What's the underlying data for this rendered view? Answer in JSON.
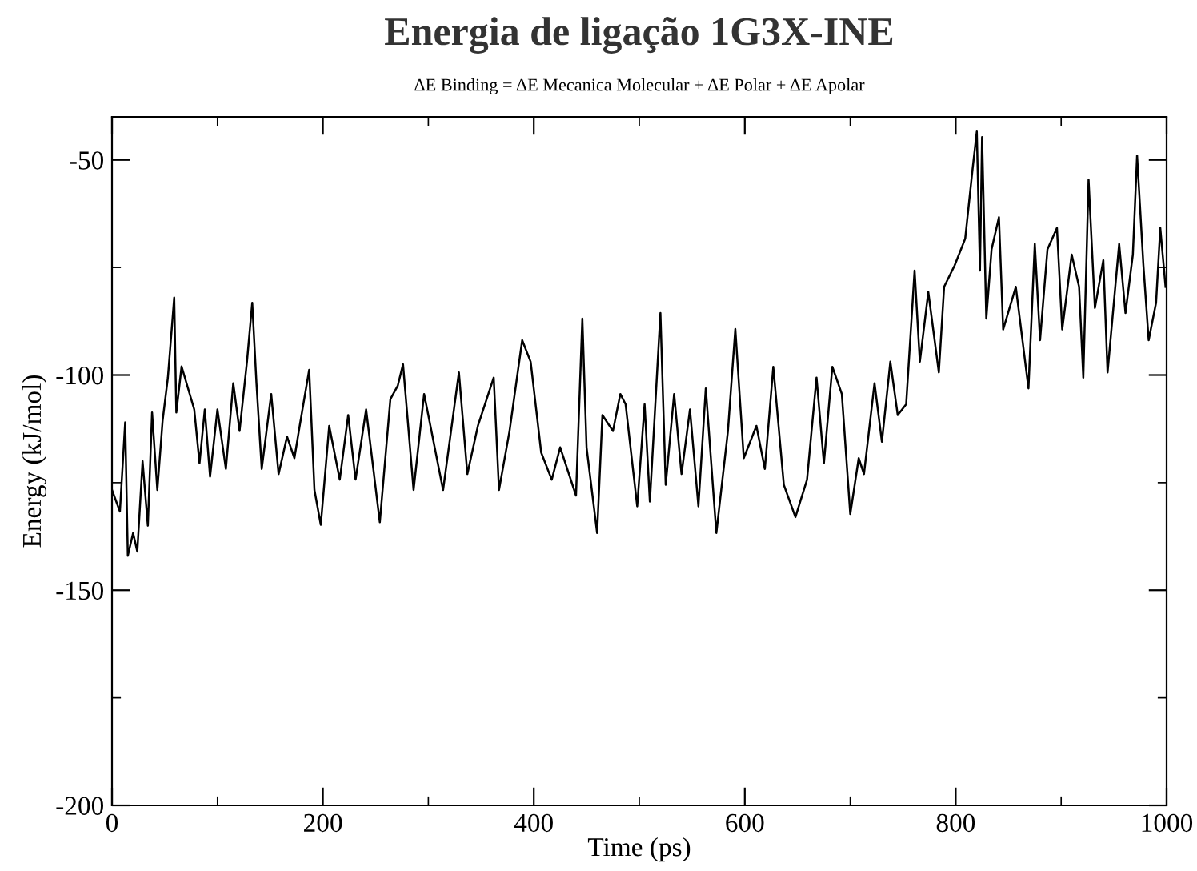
{
  "chart_data": {
    "type": "line",
    "title": "Energia de ligação 1G3X-INE",
    "subtitle": "ΔE Binding = ΔE Mecanica Molecular + ΔE Polar + ΔE Apolar",
    "xlabel": "Time (ps)",
    "ylabel": "Energy (kJ/mol)",
    "xlim": [
      0,
      1000
    ],
    "ylim": [
      -200,
      -40
    ],
    "xticks": [
      0,
      {
        "value": 100,
        "label": null
      },
      200,
      {
        "value": 300,
        "label": null
      },
      400,
      {
        "value": 500,
        "label": null
      },
      600,
      {
        "value": 700,
        "label": null
      },
      800,
      {
        "value": 900,
        "label": null
      },
      1000
    ],
    "yticks": [
      -200,
      {
        "value": -175,
        "label": null
      },
      -150,
      {
        "value": -125,
        "label": null
      },
      -100,
      {
        "value": -75,
        "label": null
      },
      -50
    ],
    "grid": false,
    "marker": "none",
    "line_style": "solid",
    "series": [
      {
        "color": "#000000",
        "x": [
          0,
          7.5,
          12.5,
          15,
          20,
          24,
          29,
          34,
          38,
          43,
          48,
          53,
          59,
          61,
          66,
          78,
          83,
          88,
          93,
          100,
          108,
          115,
          121,
          128,
          133,
          137,
          142,
          151,
          158,
          166,
          173,
          178,
          187,
          192,
          198,
          206,
          216,
          224,
          231,
          241,
          254,
          264,
          271,
          276,
          286,
          296,
          314,
          329,
          337,
          347,
          362,
          367,
          377,
          389,
          397,
          407,
          417,
          425,
          440,
          446,
          450,
          460,
          465,
          475,
          482,
          487,
          498,
          505,
          510,
          520,
          525,
          533,
          540,
          548,
          556,
          563,
          573,
          584,
          591,
          599,
          611,
          619,
          627,
          637,
          648,
          659,
          668,
          675,
          683,
          692,
          700,
          708,
          713,
          723,
          730,
          738,
          745,
          753,
          761,
          766,
          774,
          784,
          789,
          799,
          809,
          816,
          820,
          823,
          825,
          829,
          834,
          841,
          845,
          857,
          869,
          875,
          880,
          887,
          896,
          901,
          910,
          917,
          921,
          926,
          932,
          940,
          944,
          955,
          961,
          968,
          972,
          978,
          983,
          990,
          994,
          999
        ],
        "values": [
          -126.7,
          -131.7,
          -111,
          -142,
          -136.7,
          -141,
          -120,
          -135,
          -108.7,
          -126.7,
          -110.6,
          -100.6,
          -82,
          -108.7,
          -98,
          -108,
          -120.5,
          -108,
          -123.6,
          -108,
          -121.8,
          -101.9,
          -113,
          -96.9,
          -83.2,
          -101.9,
          -121.8,
          -104.4,
          -123,
          -114.3,
          -119.3,
          -111.8,
          -98.8,
          -126.7,
          -134.8,
          -111.8,
          -124.3,
          -109.3,
          -124.3,
          -108,
          -134.2,
          -105.6,
          -102.5,
          -97.5,
          -126.7,
          -104.4,
          -126.7,
          -99.4,
          -123,
          -111.8,
          -100.6,
          -126.7,
          -113,
          -91.9,
          -96.9,
          -118,
          -124.3,
          -116.8,
          -128,
          -86.9,
          -116.8,
          -136.7,
          -109.3,
          -113,
          -104.4,
          -106.8,
          -130.5,
          -106.8,
          -129.4,
          -85.6,
          -125.5,
          -104.4,
          -123,
          -108,
          -130.5,
          -103.1,
          -136.7,
          -113,
          -89.3,
          -119.3,
          -111.8,
          -121.8,
          -98.1,
          -125.5,
          -133,
          -124.3,
          -100.6,
          -120.5,
          -98.1,
          -104.4,
          -132.3,
          -119.3,
          -123,
          -101.9,
          -115.5,
          -96.9,
          -109.3,
          -106.8,
          -75.7,
          -96.9,
          -80.7,
          -99.4,
          -79.5,
          -74.5,
          -68.3,
          -52.1,
          -43.4,
          -75.7,
          -44.7,
          -86.9,
          -70.8,
          -63.3,
          -89.4,
          -79.5,
          -103.1,
          -69.5,
          -91.9,
          -70.8,
          -65.8,
          -89.4,
          -72,
          -79.5,
          -100.6,
          -54.6,
          -84.4,
          -73.3,
          -99.4,
          -69.5,
          -85.6,
          -72,
          -49,
          -74.5,
          -91.9,
          -83.2,
          -65.8,
          -79.5
        ]
      }
    ]
  }
}
